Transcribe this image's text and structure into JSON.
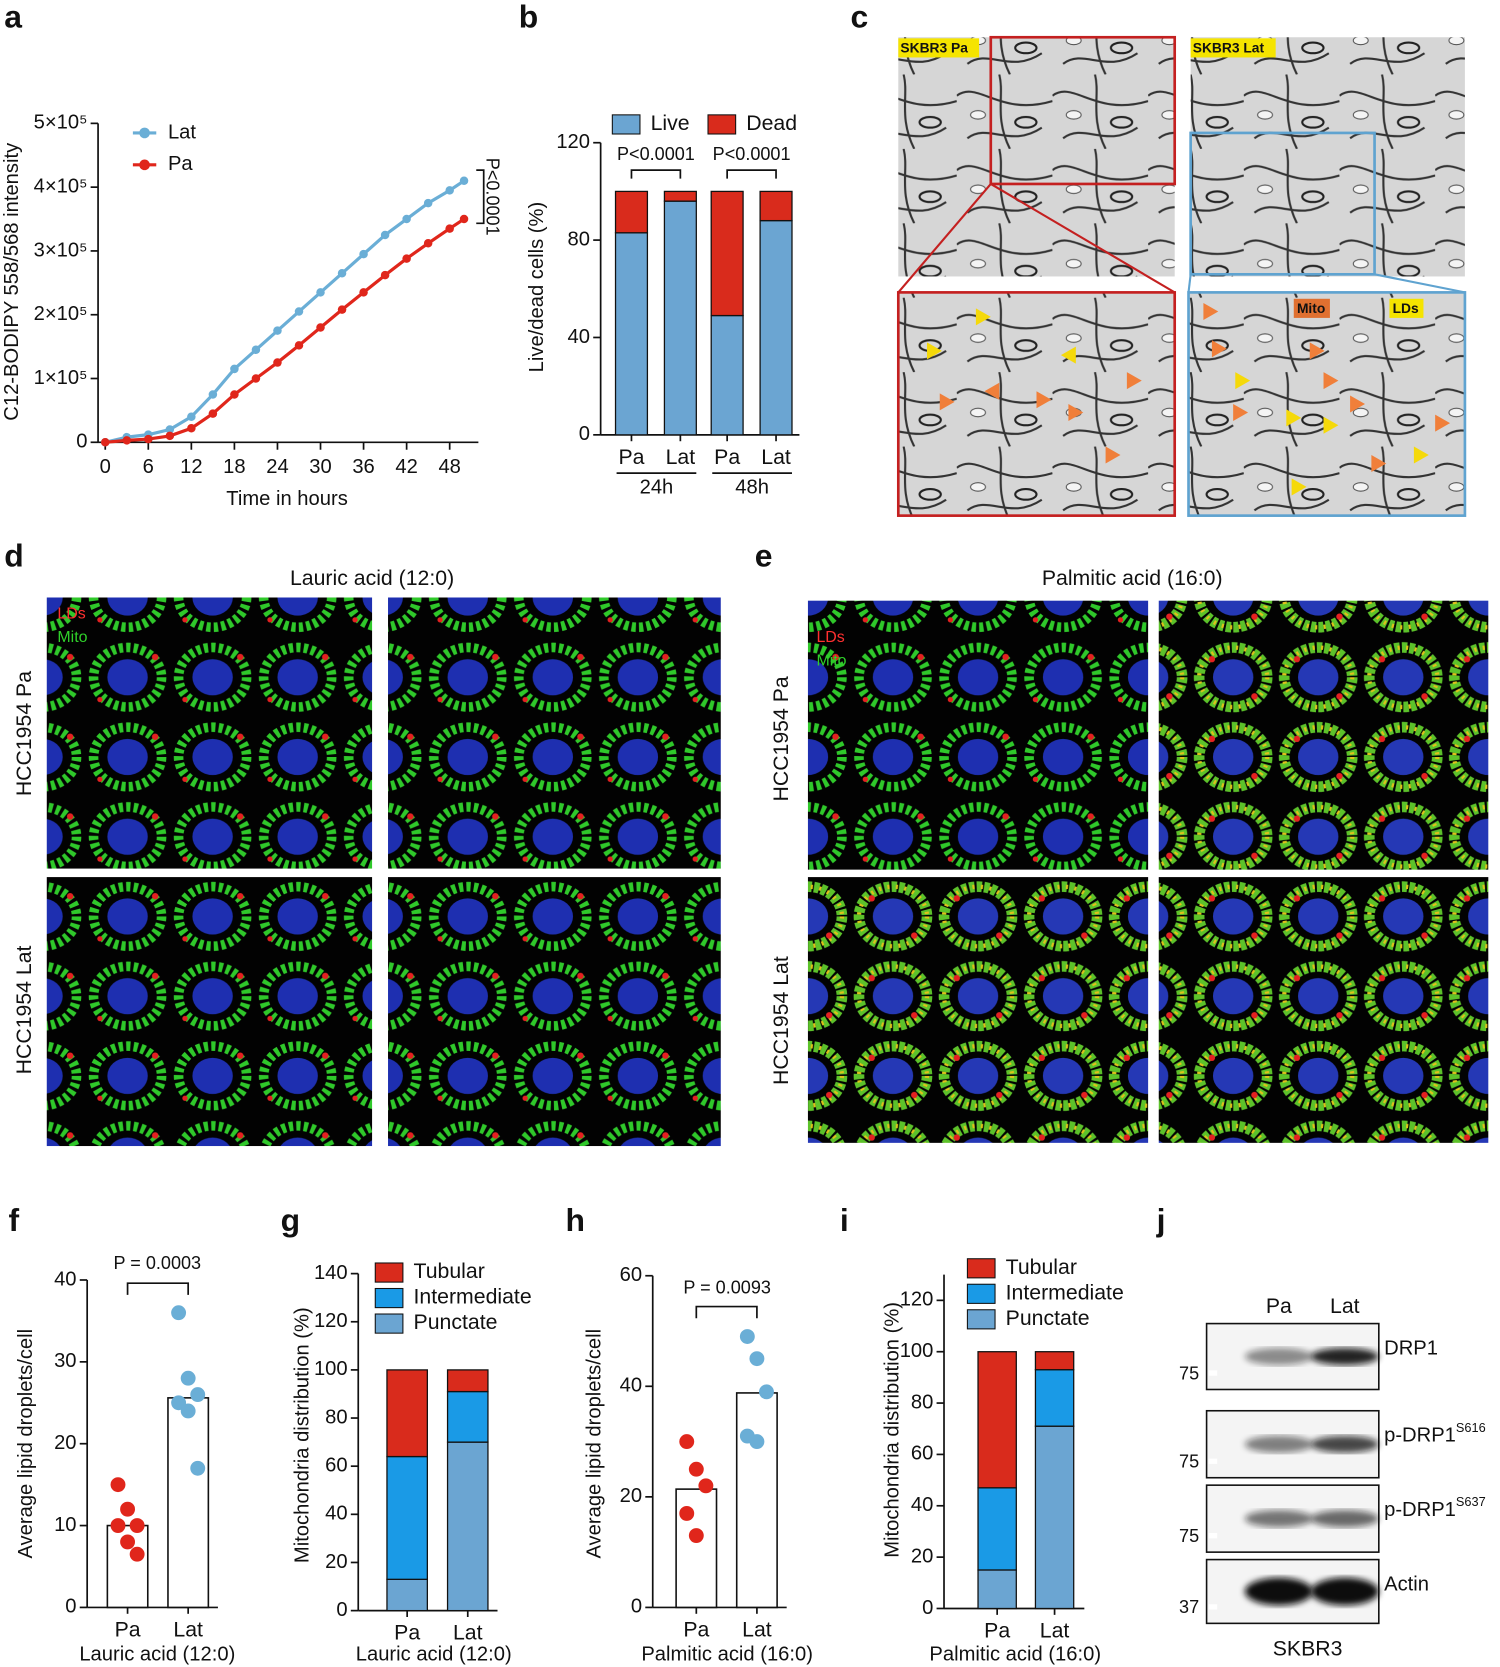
{
  "chart_data": [
    {
      "panel": "a",
      "type": "line",
      "y_label": "C12-BODIPY 558/568 intensity",
      "x_label": "Time in hours",
      "x": [
        0,
        3,
        6,
        9,
        12,
        15,
        18,
        21,
        24,
        27,
        30,
        33,
        36,
        39,
        42,
        45,
        48,
        50
      ],
      "series": [
        {
          "name": "Lat",
          "color": "#6aaed6",
          "values": [
            0,
            8000,
            12000,
            20000,
            40000,
            75000,
            115000,
            145000,
            175000,
            205000,
            235000,
            265000,
            295000,
            325000,
            350000,
            375000,
            395000,
            410000
          ]
        },
        {
          "name": "Pa",
          "color": "#e0261b",
          "values": [
            0,
            3000,
            5000,
            10000,
            22000,
            45000,
            75000,
            100000,
            125000,
            152000,
            180000,
            208000,
            235000,
            262000,
            288000,
            312000,
            335000,
            350000
          ]
        }
      ],
      "xlim": [
        -1,
        52
      ],
      "xticks": [
        0,
        6,
        12,
        18,
        24,
        30,
        36,
        42,
        48
      ],
      "ylim": [
        0,
        500000
      ],
      "yticks": [
        0,
        {
          "value": 100000,
          "label": "1×10⁵"
        },
        {
          "value": 200000,
          "label": "2×10⁵"
        },
        {
          "value": 300000,
          "label": "3×10⁵"
        },
        {
          "value": 400000,
          "label": "4×10⁵"
        },
        {
          "value": 500000,
          "label": "5×10⁵"
        }
      ],
      "annotations": [
        "P<0.0001"
      ],
      "legend": "upper left"
    },
    {
      "panel": "b",
      "type": "stacked_bar",
      "y_label": "Live/dead cells (%)",
      "categories": [
        "Pa",
        "Lat",
        "Pa",
        "Lat"
      ],
      "groups": [
        "24h",
        "48h"
      ],
      "series": [
        {
          "name": "Live",
          "color": "#6ba5d2",
          "values": [
            83,
            96,
            49,
            88
          ]
        },
        {
          "name": "Dead",
          "color": "#d92b1c",
          "values": [
            17,
            4,
            51,
            12
          ]
        }
      ],
      "ylim": [
        0,
        120
      ],
      "yticks": [
        0,
        40,
        80,
        120
      ],
      "annotations": [
        "P<0.0001",
        "P<0.0001"
      ],
      "legend": "top"
    },
    {
      "panel": "f",
      "type": "bar_scatter",
      "y_label": "Average lipid droplets/cell",
      "x_label": "Lauric acid (12:0)",
      "categories": [
        "Pa",
        "Lat"
      ],
      "values": [
        10,
        25.6
      ],
      "point_colors": [
        "#e0261b",
        "#6aaed6"
      ],
      "points": [
        [
          15,
          12,
          10,
          10,
          8,
          6.5
        ],
        [
          36,
          28,
          26,
          25,
          24,
          17
        ]
      ],
      "ylim": [
        0,
        40
      ],
      "yticks": [
        0,
        10,
        20,
        30,
        40
      ],
      "annotations": [
        "P = 0.0003"
      ]
    },
    {
      "panel": "g",
      "type": "stacked_bar",
      "y_label": "Mitochondria distribution (%)",
      "x_label": "Lauric acid (12:0)",
      "categories": [
        "Pa",
        "Lat"
      ],
      "series": [
        {
          "name": "Punctate",
          "color": "#6ba5d2",
          "values": [
            13,
            70
          ]
        },
        {
          "name": "Intermediate",
          "color": "#1a9ae6",
          "values": [
            51,
            21
          ]
        },
        {
          "name": "Tubular",
          "color": "#d92b1c",
          "values": [
            36,
            9
          ]
        }
      ],
      "ylim": [
        0,
        140
      ],
      "yticks": [
        0,
        20,
        40,
        60,
        80,
        100,
        120,
        140
      ],
      "legend": "top"
    },
    {
      "panel": "h",
      "type": "bar_scatter",
      "y_label": "Average lipid droplets/cell",
      "x_label": "Palmitic acid (16:0)",
      "categories": [
        "Pa",
        "Lat"
      ],
      "values": [
        21.4,
        38.8
      ],
      "point_colors": [
        "#e0261b",
        "#6aaed6"
      ],
      "points": [
        [
          30,
          25,
          22,
          17,
          13
        ],
        [
          49,
          45,
          39,
          31,
          30
        ]
      ],
      "ylim": [
        0,
        60
      ],
      "yticks": [
        0,
        20,
        40,
        60
      ],
      "annotations": [
        "P = 0.0093"
      ]
    },
    {
      "panel": "i",
      "type": "stacked_bar",
      "y_label": "Mitochondria distribution (%)",
      "x_label": "Palmitic acid (16:0)",
      "categories": [
        "Pa",
        "Lat"
      ],
      "series": [
        {
          "name": "Punctate",
          "color": "#6ba5d2",
          "values": [
            15,
            71
          ]
        },
        {
          "name": "Intermediate",
          "color": "#1a9ae6",
          "values": [
            32,
            22
          ]
        },
        {
          "name": "Tubular",
          "color": "#d92b1c",
          "values": [
            53,
            7
          ]
        }
      ],
      "ylim": [
        0,
        130
      ],
      "yticks": [
        0,
        20,
        40,
        60,
        80,
        100,
        120
      ],
      "legend": "top"
    }
  ],
  "micrographs": [
    {
      "panel": "c",
      "labels": [
        "SKBR3 Pa",
        "SKBR3 Lat",
        "Mito",
        "LDs"
      ]
    },
    {
      "panel": "d",
      "title": "Lauric acid (12:0)",
      "rows": [
        "HCC1954 Pa",
        "HCC1954 Lat"
      ],
      "stains": [
        "LDs",
        "Mito"
      ]
    },
    {
      "panel": "e",
      "title": "Palmitic acid (16:0)",
      "rows": [
        "HCC1954 Pa",
        "HCC1954 Lat"
      ],
      "stains": [
        "LDs",
        "Mito"
      ]
    }
  ],
  "blot": {
    "panel": "j",
    "lanes": [
      "Pa",
      "Lat"
    ],
    "cell_line": "SKBR3",
    "bands": [
      {
        "name": "DRP1",
        "marker": 75
      },
      {
        "name": "p-DRP1",
        "superscript": "S616",
        "marker": 75
      },
      {
        "name": "p-DRP1",
        "superscript": "S637",
        "marker": 75
      },
      {
        "name": "Actin",
        "marker": 37
      }
    ]
  }
}
